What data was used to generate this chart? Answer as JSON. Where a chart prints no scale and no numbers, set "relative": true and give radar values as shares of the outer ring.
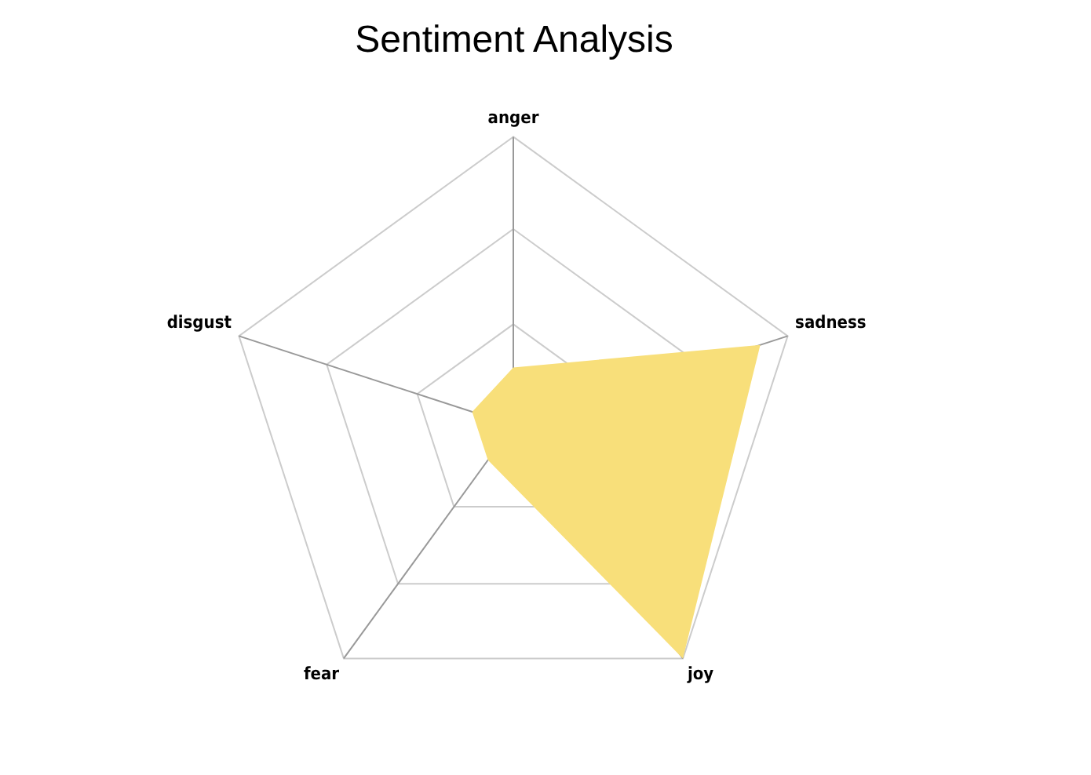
{
  "chart_data": {
    "type": "radar",
    "title": "Sentiment Analysis",
    "relative": true,
    "categories": [
      "anger",
      "sadness",
      "joy",
      "fear",
      "disgust"
    ],
    "legend": false,
    "marker": "none",
    "series": [
      {
        "color": "#f8df7a",
        "values": [
          0.2,
          0.9,
          1,
          0.15,
          0.15
        ]
      }
    ]
  }
}
